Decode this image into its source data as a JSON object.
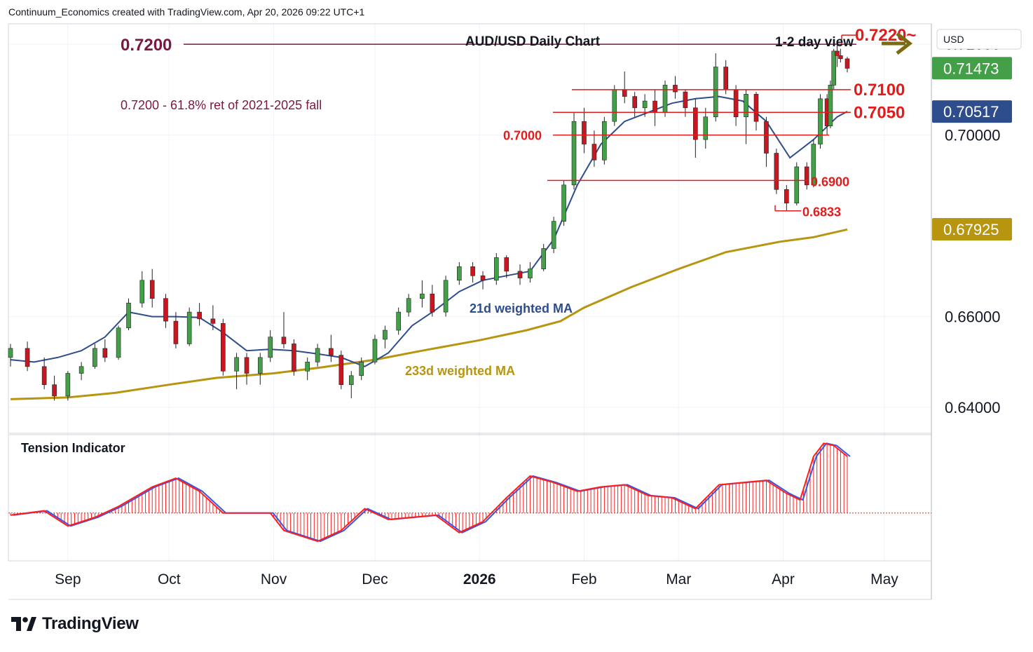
{
  "header": {
    "attribution": "Continuum_Economics created with TradingView.com, Apr 20, 2026 09:22 UTC+1"
  },
  "brand": {
    "name": "TradingView",
    "logo_icon": "tradingview-logo-icon"
  },
  "colors": {
    "up": "#44a048",
    "down": "#c91722",
    "ma21": "#2e4d8c",
    "ma233": "#b8950f",
    "level": "#e21b1b",
    "fib": "#7b1742",
    "arrow": "#7a6a10",
    "tension": "#ff1e1e",
    "tension_signal": "#3a55e0"
  },
  "chart_data": {
    "type": "candlestick",
    "title": "AUD/USD Daily Chart",
    "view_label": "1-2 day view",
    "view_icon": "right-arrow-icon",
    "currency_label": "USD",
    "y_ticks": [
      "0.72000",
      "0.70000",
      "0.66000",
      "0.64000"
    ],
    "ylim": [
      0.6343,
      0.7245
    ],
    "x_ticks": [
      {
        "label": "Sep",
        "date": "2025-09-01",
        "bold": false
      },
      {
        "label": "Oct",
        "date": "2025-10-01",
        "bold": false
      },
      {
        "label": "Nov",
        "date": "2025-11-01",
        "bold": false
      },
      {
        "label": "Dec",
        "date": "2025-12-01",
        "bold": false
      },
      {
        "label": "2026",
        "date": "2026-01-01",
        "bold": true
      },
      {
        "label": "Feb",
        "date": "2026-02-01",
        "bold": false
      },
      {
        "label": "Mar",
        "date": "2026-03-01",
        "bold": false
      },
      {
        "label": "Apr",
        "date": "2026-04-01",
        "bold": false
      },
      {
        "label": "May",
        "date": "2026-05-01",
        "bold": false
      }
    ],
    "price_badges": [
      {
        "text": "0.71473",
        "value": 0.71473,
        "bg": "#44a048",
        "name": "last-price-badge"
      },
      {
        "text": "0.70517",
        "value": 0.70517,
        "bg": "#2e4d8c",
        "name": "ma21-value-badge"
      },
      {
        "text": "0.67925",
        "value": 0.67925,
        "bg": "#b8950f",
        "name": "ma233-value-badge"
      }
    ],
    "levels": [
      {
        "text": "0.7220~",
        "value": 0.722,
        "name": "level-0-7220"
      },
      {
        "text": "0.7100",
        "value": 0.71,
        "name": "level-0-7100"
      },
      {
        "text": "0.7050",
        "value": 0.705,
        "name": "level-0-7050"
      },
      {
        "text": "0.7000",
        "value": 0.7,
        "name": "level-0-7000"
      },
      {
        "text": "0.6900",
        "value": 0.69,
        "name": "level-0-6900"
      },
      {
        "text": "0.6833",
        "value": 0.6833,
        "name": "level-0-6833"
      }
    ],
    "fib": {
      "value": 0.72,
      "text": "0.7200",
      "note": "0.7200 - 61.8% ret of 2021-2025 fall"
    },
    "ma21_label": "21d weighted MA",
    "ma233_label": "233d weighted MA",
    "ma21_path": [
      [
        "2025-08-15",
        0.6505
      ],
      [
        "2025-08-22",
        0.65
      ],
      [
        "2025-08-29",
        0.651
      ],
      [
        "2025-09-05",
        0.6525
      ],
      [
        "2025-09-12",
        0.6555
      ],
      [
        "2025-09-19",
        0.661
      ],
      [
        "2025-09-26",
        0.66
      ],
      [
        "2025-10-03",
        0.66
      ],
      [
        "2025-10-10",
        0.6598
      ],
      [
        "2025-10-17",
        0.6565
      ],
      [
        "2025-10-24",
        0.6525
      ],
      [
        "2025-10-31",
        0.6528
      ],
      [
        "2025-11-07",
        0.6525
      ],
      [
        "2025-11-14",
        0.6518
      ],
      [
        "2025-11-21",
        0.651
      ],
      [
        "2025-11-28",
        0.649
      ],
      [
        "2025-12-05",
        0.652
      ],
      [
        "2025-12-12",
        0.658
      ],
      [
        "2025-12-19",
        0.6615
      ],
      [
        "2025-12-26",
        0.6655
      ],
      [
        "2026-01-02",
        0.668
      ],
      [
        "2026-01-09",
        0.669
      ],
      [
        "2026-01-16",
        0.67
      ],
      [
        "2026-01-23",
        0.677
      ],
      [
        "2026-01-30",
        0.689
      ],
      [
        "2026-02-06",
        0.698
      ],
      [
        "2026-02-13",
        0.703
      ],
      [
        "2026-02-20",
        0.705
      ],
      [
        "2026-02-27",
        0.707
      ],
      [
        "2026-03-06",
        0.708
      ],
      [
        "2026-03-13",
        0.7085
      ],
      [
        "2026-03-20",
        0.7075
      ],
      [
        "2026-03-27",
        0.703
      ],
      [
        "2026-04-03",
        0.695
      ],
      [
        "2026-04-10",
        0.699
      ],
      [
        "2026-04-17",
        0.704
      ],
      [
        "2026-04-20",
        0.7052
      ]
    ],
    "ma233_path": [
      [
        "2025-08-15",
        0.6418
      ],
      [
        "2025-09-01",
        0.6422
      ],
      [
        "2025-09-15",
        0.6432
      ],
      [
        "2025-10-01",
        0.645
      ],
      [
        "2025-10-15",
        0.6465
      ],
      [
        "2025-11-01",
        0.6475
      ],
      [
        "2025-11-15",
        0.6488
      ],
      [
        "2025-12-01",
        0.6505
      ],
      [
        "2025-12-15",
        0.6525
      ],
      [
        "2026-01-01",
        0.6548
      ],
      [
        "2026-01-15",
        0.657
      ],
      [
        "2026-01-25",
        0.659
      ],
      [
        "2026-02-01",
        0.662
      ],
      [
        "2026-02-15",
        0.6665
      ],
      [
        "2026-03-01",
        0.6705
      ],
      [
        "2026-03-15",
        0.6742
      ],
      [
        "2026-03-31",
        0.6765
      ],
      [
        "2026-04-10",
        0.6775
      ],
      [
        "2026-04-20",
        0.6792
      ]
    ],
    "candles": [
      {
        "d": "2025-08-15",
        "o": 0.651,
        "h": 0.654,
        "l": 0.649,
        "c": 0.653
      },
      {
        "d": "2025-08-20",
        "o": 0.653,
        "h": 0.6545,
        "l": 0.648,
        "c": 0.649
      },
      {
        "d": "2025-08-25",
        "o": 0.649,
        "h": 0.651,
        "l": 0.644,
        "c": 0.645
      },
      {
        "d": "2025-08-28",
        "o": 0.645,
        "h": 0.647,
        "l": 0.6415,
        "c": 0.6425
      },
      {
        "d": "2025-09-01",
        "o": 0.6425,
        "h": 0.648,
        "l": 0.6415,
        "c": 0.6475
      },
      {
        "d": "2025-09-05",
        "o": 0.6475,
        "h": 0.65,
        "l": 0.646,
        "c": 0.649
      },
      {
        "d": "2025-09-09",
        "o": 0.649,
        "h": 0.654,
        "l": 0.6485,
        "c": 0.653
      },
      {
        "d": "2025-09-12",
        "o": 0.653,
        "h": 0.655,
        "l": 0.65,
        "c": 0.651
      },
      {
        "d": "2025-09-16",
        "o": 0.651,
        "h": 0.658,
        "l": 0.6505,
        "c": 0.6575
      },
      {
        "d": "2025-09-19",
        "o": 0.6575,
        "h": 0.664,
        "l": 0.657,
        "c": 0.663
      },
      {
        "d": "2025-09-23",
        "o": 0.663,
        "h": 0.67,
        "l": 0.662,
        "c": 0.668
      },
      {
        "d": "2025-09-26",
        "o": 0.668,
        "h": 0.6705,
        "l": 0.662,
        "c": 0.664
      },
      {
        "d": "2025-09-30",
        "o": 0.664,
        "h": 0.665,
        "l": 0.6575,
        "c": 0.659
      },
      {
        "d": "2025-10-03",
        "o": 0.659,
        "h": 0.661,
        "l": 0.653,
        "c": 0.654
      },
      {
        "d": "2025-10-07",
        "o": 0.654,
        "h": 0.662,
        "l": 0.6535,
        "c": 0.661
      },
      {
        "d": "2025-10-10",
        "o": 0.661,
        "h": 0.663,
        "l": 0.658,
        "c": 0.6595
      },
      {
        "d": "2025-10-14",
        "o": 0.6595,
        "h": 0.6625,
        "l": 0.657,
        "c": 0.6585
      },
      {
        "d": "2025-10-17",
        "o": 0.6585,
        "h": 0.6595,
        "l": 0.647,
        "c": 0.648
      },
      {
        "d": "2025-10-21",
        "o": 0.648,
        "h": 0.652,
        "l": 0.644,
        "c": 0.651
      },
      {
        "d": "2025-10-24",
        "o": 0.651,
        "h": 0.652,
        "l": 0.645,
        "c": 0.6475
      },
      {
        "d": "2025-10-28",
        "o": 0.6475,
        "h": 0.652,
        "l": 0.645,
        "c": 0.651
      },
      {
        "d": "2025-10-31",
        "o": 0.651,
        "h": 0.657,
        "l": 0.65,
        "c": 0.6555
      },
      {
        "d": "2025-11-04",
        "o": 0.6555,
        "h": 0.661,
        "l": 0.653,
        "c": 0.654
      },
      {
        "d": "2025-11-07",
        "o": 0.654,
        "h": 0.655,
        "l": 0.647,
        "c": 0.648
      },
      {
        "d": "2025-11-11",
        "o": 0.648,
        "h": 0.651,
        "l": 0.646,
        "c": 0.65
      },
      {
        "d": "2025-11-14",
        "o": 0.65,
        "h": 0.654,
        "l": 0.649,
        "c": 0.653
      },
      {
        "d": "2025-11-18",
        "o": 0.653,
        "h": 0.656,
        "l": 0.65,
        "c": 0.6515
      },
      {
        "d": "2025-11-21",
        "o": 0.6515,
        "h": 0.6525,
        "l": 0.644,
        "c": 0.645
      },
      {
        "d": "2025-11-24",
        "o": 0.645,
        "h": 0.648,
        "l": 0.642,
        "c": 0.647
      },
      {
        "d": "2025-11-27",
        "o": 0.647,
        "h": 0.651,
        "l": 0.646,
        "c": 0.65
      },
      {
        "d": "2025-12-01",
        "o": 0.65,
        "h": 0.656,
        "l": 0.6495,
        "c": 0.655
      },
      {
        "d": "2025-12-04",
        "o": 0.655,
        "h": 0.658,
        "l": 0.653,
        "c": 0.657
      },
      {
        "d": "2025-12-08",
        "o": 0.657,
        "h": 0.662,
        "l": 0.656,
        "c": 0.661
      },
      {
        "d": "2025-12-11",
        "o": 0.661,
        "h": 0.665,
        "l": 0.66,
        "c": 0.664
      },
      {
        "d": "2025-12-15",
        "o": 0.664,
        "h": 0.668,
        "l": 0.662,
        "c": 0.665
      },
      {
        "d": "2025-12-18",
        "o": 0.665,
        "h": 0.667,
        "l": 0.66,
        "c": 0.661
      },
      {
        "d": "2025-12-22",
        "o": 0.661,
        "h": 0.669,
        "l": 0.66,
        "c": 0.668
      },
      {
        "d": "2025-12-26",
        "o": 0.668,
        "h": 0.672,
        "l": 0.667,
        "c": 0.671
      },
      {
        "d": "2025-12-30",
        "o": 0.671,
        "h": 0.672,
        "l": 0.6675,
        "c": 0.669
      },
      {
        "d": "2026-01-02",
        "o": 0.669,
        "h": 0.67,
        "l": 0.666,
        "c": 0.668
      },
      {
        "d": "2026-01-06",
        "o": 0.668,
        "h": 0.674,
        "l": 0.667,
        "c": 0.673
      },
      {
        "d": "2026-01-09",
        "o": 0.673,
        "h": 0.6735,
        "l": 0.6685,
        "c": 0.67
      },
      {
        "d": "2026-01-13",
        "o": 0.67,
        "h": 0.6715,
        "l": 0.667,
        "c": 0.6685
      },
      {
        "d": "2026-01-16",
        "o": 0.6685,
        "h": 0.672,
        "l": 0.6675,
        "c": 0.6705
      },
      {
        "d": "2026-01-20",
        "o": 0.6705,
        "h": 0.676,
        "l": 0.67,
        "c": 0.675
      },
      {
        "d": "2026-01-23",
        "o": 0.675,
        "h": 0.682,
        "l": 0.674,
        "c": 0.681
      },
      {
        "d": "2026-01-26",
        "o": 0.681,
        "h": 0.69,
        "l": 0.68,
        "c": 0.689
      },
      {
        "d": "2026-01-29",
        "o": 0.689,
        "h": 0.705,
        "l": 0.688,
        "c": 0.703
      },
      {
        "d": "2026-02-01",
        "o": 0.703,
        "h": 0.706,
        "l": 0.696,
        "c": 0.698
      },
      {
        "d": "2026-02-04",
        "o": 0.698,
        "h": 0.701,
        "l": 0.693,
        "c": 0.6945
      },
      {
        "d": "2026-02-07",
        "o": 0.6945,
        "h": 0.704,
        "l": 0.6935,
        "c": 0.703
      },
      {
        "d": "2026-02-10",
        "o": 0.703,
        "h": 0.711,
        "l": 0.702,
        "c": 0.71
      },
      {
        "d": "2026-02-13",
        "o": 0.71,
        "h": 0.714,
        "l": 0.707,
        "c": 0.7085
      },
      {
        "d": "2026-02-16",
        "o": 0.7085,
        "h": 0.7095,
        "l": 0.704,
        "c": 0.706
      },
      {
        "d": "2026-02-19",
        "o": 0.706,
        "h": 0.709,
        "l": 0.704,
        "c": 0.7075
      },
      {
        "d": "2026-02-22",
        "o": 0.7075,
        "h": 0.71,
        "l": 0.702,
        "c": 0.705
      },
      {
        "d": "2026-02-25",
        "o": 0.705,
        "h": 0.712,
        "l": 0.704,
        "c": 0.711
      },
      {
        "d": "2026-02-28",
        "o": 0.711,
        "h": 0.713,
        "l": 0.708,
        "c": 0.7095
      },
      {
        "d": "2026-03-03",
        "o": 0.7095,
        "h": 0.71,
        "l": 0.704,
        "c": 0.706
      },
      {
        "d": "2026-03-06",
        "o": 0.706,
        "h": 0.708,
        "l": 0.695,
        "c": 0.699
      },
      {
        "d": "2026-03-09",
        "o": 0.699,
        "h": 0.706,
        "l": 0.697,
        "c": 0.704
      },
      {
        "d": "2026-03-12",
        "o": 0.704,
        "h": 0.718,
        "l": 0.703,
        "c": 0.715
      },
      {
        "d": "2026-03-15",
        "o": 0.715,
        "h": 0.7165,
        "l": 0.709,
        "c": 0.71
      },
      {
        "d": "2026-03-18",
        "o": 0.71,
        "h": 0.711,
        "l": 0.702,
        "c": 0.704
      },
      {
        "d": "2026-03-21",
        "o": 0.704,
        "h": 0.71,
        "l": 0.698,
        "c": 0.709
      },
      {
        "d": "2026-03-24",
        "o": 0.709,
        "h": 0.7095,
        "l": 0.701,
        "c": 0.703
      },
      {
        "d": "2026-03-27",
        "o": 0.703,
        "h": 0.704,
        "l": 0.693,
        "c": 0.696
      },
      {
        "d": "2026-03-30",
        "o": 0.696,
        "h": 0.697,
        "l": 0.687,
        "c": 0.688
      },
      {
        "d": "2026-04-02",
        "o": 0.688,
        "h": 0.689,
        "l": 0.6833,
        "c": 0.685
      },
      {
        "d": "2026-04-05",
        "o": 0.685,
        "h": 0.694,
        "l": 0.6845,
        "c": 0.693
      },
      {
        "d": "2026-04-08",
        "o": 0.693,
        "h": 0.694,
        "l": 0.688,
        "c": 0.689
      },
      {
        "d": "2026-04-10",
        "o": 0.689,
        "h": 0.699,
        "l": 0.6885,
        "c": 0.698
      },
      {
        "d": "2026-04-12",
        "o": 0.698,
        "h": 0.709,
        "l": 0.697,
        "c": 0.708
      },
      {
        "d": "2026-04-14",
        "o": 0.708,
        "h": 0.709,
        "l": 0.7,
        "c": 0.702
      },
      {
        "d": "2026-04-15",
        "o": 0.702,
        "h": 0.712,
        "l": 0.7015,
        "c": 0.711
      },
      {
        "d": "2026-04-16",
        "o": 0.711,
        "h": 0.719,
        "l": 0.71,
        "c": 0.7185
      },
      {
        "d": "2026-04-17",
        "o": 0.7185,
        "h": 0.72,
        "l": 0.715,
        "c": 0.7175
      },
      {
        "d": "2026-04-18",
        "o": 0.7175,
        "h": 0.719,
        "l": 0.716,
        "c": 0.7168
      },
      {
        "d": "2026-04-20",
        "o": 0.7168,
        "h": 0.7172,
        "l": 0.7138,
        "c": 0.7147
      }
    ],
    "tension": {
      "label": "Tension Indicator",
      "ylim": [
        -2.2,
        3.6
      ],
      "values": [
        [
          "2025-08-15",
          -0.1
        ],
        [
          "2025-08-25",
          0.1
        ],
        [
          "2025-09-01",
          -0.6
        ],
        [
          "2025-09-09",
          -0.2
        ],
        [
          "2025-09-16",
          0.3
        ],
        [
          "2025-09-26",
          1.2
        ],
        [
          "2025-10-03",
          1.6
        ],
        [
          "2025-10-10",
          1.0
        ],
        [
          "2025-10-17",
          0.0
        ],
        [
          "2025-10-31",
          0.0
        ],
        [
          "2025-11-04",
          -0.8
        ],
        [
          "2025-11-14",
          -1.3
        ],
        [
          "2025-11-21",
          -0.8
        ],
        [
          "2025-11-28",
          0.2
        ],
        [
          "2025-12-05",
          -0.3
        ],
        [
          "2025-12-12",
          -0.2
        ],
        [
          "2025-12-19",
          -0.1
        ],
        [
          "2025-12-26",
          -0.9
        ],
        [
          "2026-01-02",
          -0.4
        ],
        [
          "2026-01-09",
          0.7
        ],
        [
          "2026-01-16",
          1.7
        ],
        [
          "2026-01-23",
          1.4
        ],
        [
          "2026-01-30",
          1.0
        ],
        [
          "2026-02-06",
          1.2
        ],
        [
          "2026-02-13",
          1.3
        ],
        [
          "2026-02-20",
          0.8
        ],
        [
          "2026-02-27",
          0.7
        ],
        [
          "2026-03-06",
          0.2
        ],
        [
          "2026-03-13",
          1.3
        ],
        [
          "2026-03-20",
          1.4
        ],
        [
          "2026-03-27",
          1.5
        ],
        [
          "2026-04-02",
          0.9
        ],
        [
          "2026-04-06",
          0.6
        ],
        [
          "2026-04-10",
          2.6
        ],
        [
          "2026-04-13",
          3.2
        ],
        [
          "2026-04-16",
          3.1
        ],
        [
          "2026-04-20",
          2.6
        ]
      ]
    }
  }
}
